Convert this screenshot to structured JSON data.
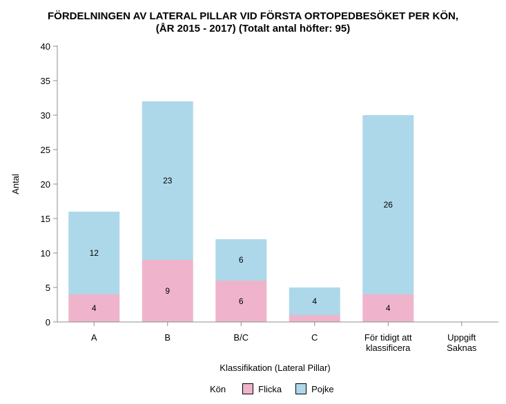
{
  "chart_data": {
    "type": "bar",
    "stacked": true,
    "title_line1": "FÖRDELNINGEN AV LATERAL PILLAR VID FÖRSTA ORTOPEDBESÖKET PER KÖN,",
    "title_line2": "(ÅR 2015 - 2017) (Totalt antal höfter:       95)",
    "xlabel": "Klassifikation (Lateral Pillar)",
    "ylabel": "Antal",
    "ylim": [
      0,
      40
    ],
    "yticks": [
      0,
      5,
      10,
      15,
      20,
      25,
      30,
      35,
      40
    ],
    "categories": [
      [
        "A"
      ],
      [
        "B"
      ],
      [
        "B/C"
      ],
      [
        "C"
      ],
      [
        "För tidigt att",
        "klassificera"
      ],
      [
        "Uppgift",
        "Saknas"
      ]
    ],
    "series": [
      {
        "name": "Flicka",
        "color": "#efb4cc",
        "values": [
          4,
          9,
          6,
          1,
          4,
          0
        ],
        "labels": [
          "4",
          "9",
          "6",
          "",
          "4",
          ""
        ]
      },
      {
        "name": "Pojke",
        "color": "#add8e9",
        "values": [
          12,
          23,
          6,
          4,
          26,
          0
        ],
        "labels": [
          "12",
          "23",
          "6",
          "4",
          "26",
          ""
        ]
      }
    ],
    "legend_title": "Kön",
    "legend_position": "bottom",
    "grid": false
  }
}
